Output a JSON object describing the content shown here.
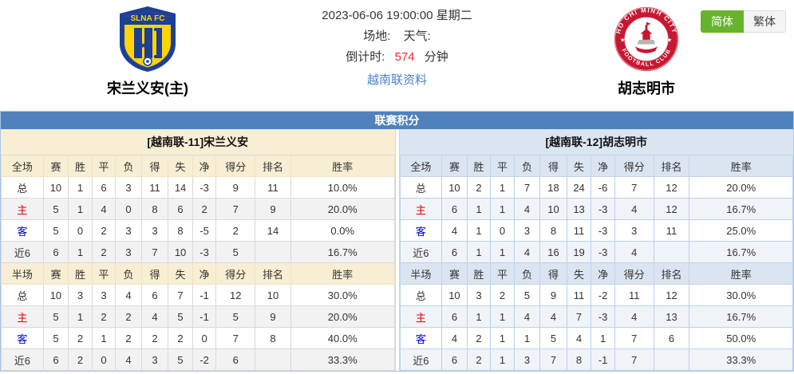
{
  "header": {
    "match_datetime": "2023-06-06 19:00:00 星期二",
    "venue_label": "场地:",
    "weather_label": "天气:",
    "countdown_label": "倒计时:",
    "countdown_value": "574",
    "countdown_unit": "分钟",
    "league_link": "越南联资料",
    "home_team": {
      "name": "宋兰义安(主)",
      "crest": "slna-fc-crest",
      "crest_text_top": "SLNA FC"
    },
    "away_team": {
      "name": "胡志明市",
      "crest": "ho-chi-minh-city-crest",
      "crest_text_top": "HO CHI MINH CITY",
      "crest_text_bottom": "FOOTBALL CLUB"
    },
    "lang_simplified": "简体",
    "lang_traditional": "繁体"
  },
  "standings": {
    "title": "联赛积分",
    "left": {
      "subtitle": "[越南联-11]宋兰义安",
      "sections": [
        {
          "header": [
            "全场",
            "赛",
            "胜",
            "平",
            "负",
            "得",
            "失",
            "净",
            "得分",
            "排名",
            "胜率"
          ],
          "rows": [
            {
              "label": "总",
              "label_class": "",
              "cells": [
                "10",
                "1",
                "6",
                "3",
                "11",
                "14",
                "-3",
                "9",
                "11",
                "10.0%"
              ]
            },
            {
              "label": "主",
              "label_class": "red",
              "cells": [
                "5",
                "1",
                "4",
                "0",
                "8",
                "6",
                "2",
                "7",
                "9",
                "20.0%"
              ]
            },
            {
              "label": "客",
              "label_class": "blue",
              "cells": [
                "5",
                "0",
                "2",
                "3",
                "3",
                "8",
                "-5",
                "2",
                "14",
                "0.0%"
              ]
            },
            {
              "label": "近6",
              "label_class": "",
              "cells": [
                "6",
                "1",
                "2",
                "3",
                "7",
                "10",
                "-3",
                "5",
                "",
                "16.7%"
              ]
            }
          ]
        },
        {
          "header": [
            "半场",
            "赛",
            "胜",
            "平",
            "负",
            "得",
            "失",
            "净",
            "得分",
            "排名",
            "胜率"
          ],
          "rows": [
            {
              "label": "总",
              "label_class": "",
              "cells": [
                "10",
                "3",
                "3",
                "4",
                "6",
                "7",
                "-1",
                "12",
                "10",
                "30.0%"
              ]
            },
            {
              "label": "主",
              "label_class": "red",
              "cells": [
                "5",
                "1",
                "2",
                "2",
                "4",
                "5",
                "-1",
                "5",
                "9",
                "20.0%"
              ]
            },
            {
              "label": "客",
              "label_class": "blue",
              "cells": [
                "5",
                "2",
                "1",
                "2",
                "2",
                "2",
                "0",
                "7",
                "8",
                "40.0%"
              ]
            },
            {
              "label": "近6",
              "label_class": "",
              "cells": [
                "6",
                "2",
                "0",
                "4",
                "3",
                "5",
                "-2",
                "6",
                "",
                "33.3%"
              ]
            }
          ]
        }
      ]
    },
    "right": {
      "subtitle": "[越南联-12]胡志明市",
      "sections": [
        {
          "header": [
            "全场",
            "赛",
            "胜",
            "平",
            "负",
            "得",
            "失",
            "净",
            "得分",
            "排名",
            "胜率"
          ],
          "rows": [
            {
              "label": "总",
              "label_class": "",
              "cells": [
                "10",
                "2",
                "1",
                "7",
                "18",
                "24",
                "-6",
                "7",
                "12",
                "20.0%"
              ]
            },
            {
              "label": "主",
              "label_class": "red",
              "cells": [
                "6",
                "1",
                "1",
                "4",
                "10",
                "13",
                "-3",
                "4",
                "12",
                "16.7%"
              ]
            },
            {
              "label": "客",
              "label_class": "blue",
              "cells": [
                "4",
                "1",
                "0",
                "3",
                "8",
                "11",
                "-3",
                "3",
                "11",
                "25.0%"
              ]
            },
            {
              "label": "近6",
              "label_class": "",
              "cells": [
                "6",
                "1",
                "1",
                "4",
                "16",
                "19",
                "-3",
                "4",
                "",
                "16.7%"
              ]
            }
          ]
        },
        {
          "header": [
            "半场",
            "赛",
            "胜",
            "平",
            "负",
            "得",
            "失",
            "净",
            "得分",
            "排名",
            "胜率"
          ],
          "rows": [
            {
              "label": "总",
              "label_class": "",
              "cells": [
                "10",
                "3",
                "2",
                "5",
                "9",
                "11",
                "-2",
                "11",
                "12",
                "30.0%"
              ]
            },
            {
              "label": "主",
              "label_class": "red",
              "cells": [
                "6",
                "1",
                "1",
                "4",
                "4",
                "7",
                "-3",
                "4",
                "13",
                "16.7%"
              ]
            },
            {
              "label": "客",
              "label_class": "blue",
              "cells": [
                "4",
                "2",
                "1",
                "1",
                "5",
                "4",
                "1",
                "7",
                "6",
                "50.0%"
              ]
            },
            {
              "label": "近6",
              "label_class": "",
              "cells": [
                "6",
                "2",
                "1",
                "3",
                "7",
                "8",
                "-1",
                "7",
                "",
                "33.3%"
              ]
            }
          ]
        }
      ]
    }
  },
  "colors": {
    "accent_blue": "#4f81bd",
    "cream": "#f8eed4",
    "lblue": "#dbe5f1",
    "home_red": "#e00000",
    "away_blue": "#0000dd",
    "link": "#4a81cf",
    "red": "#ee2c2c",
    "green": "#68b32e"
  }
}
